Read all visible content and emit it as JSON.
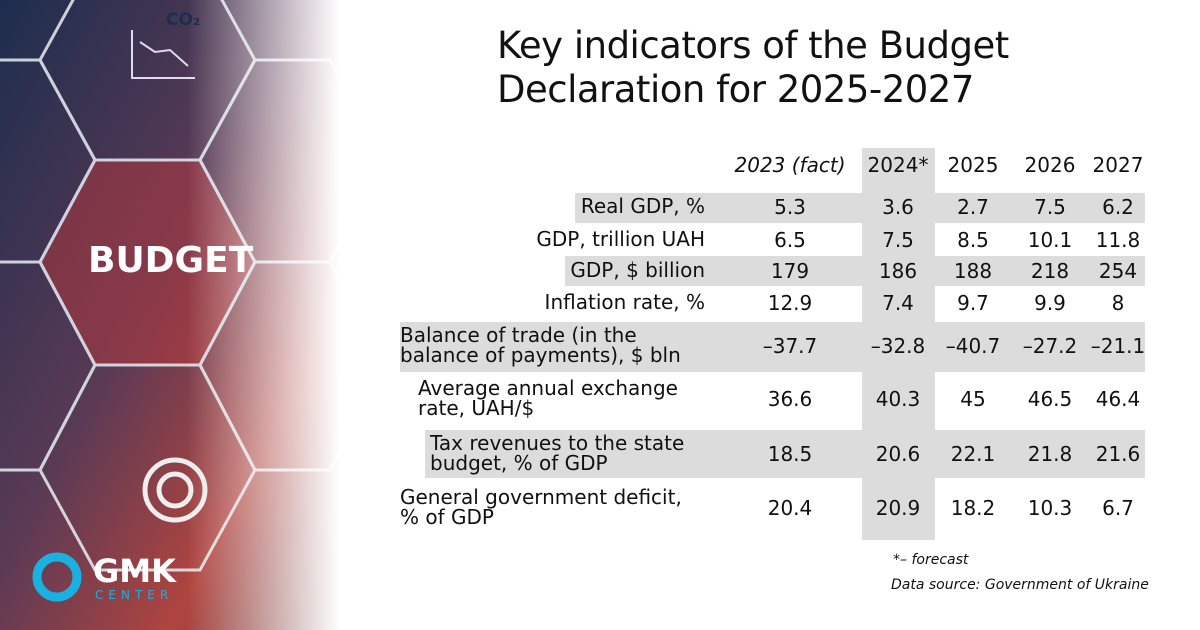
{
  "header": {
    "title_line1": "Key indicators of the Budget",
    "title_line2": "Declaration for 2025-2027"
  },
  "side": {
    "badge": "BUDGET",
    "icon_text": "CO₂",
    "logo": "GMK",
    "logo_sub": "CENTER"
  },
  "table": {
    "columns": [
      "2023 (fact)",
      "2024*",
      "2025",
      "2026",
      "2027"
    ],
    "rows": [
      [
        "Real GDP, %",
        "5.3",
        "3.6",
        "2.7",
        "7.5",
        "6.2"
      ],
      [
        "GDP, trillion UAH",
        "6.5",
        "7.5",
        "8.5",
        "10.1",
        "11.8"
      ],
      [
        "GDP, $ billion",
        "179",
        "186",
        "188",
        "218",
        "254"
      ],
      [
        "Inflation rate, %",
        "12.9",
        "7.4",
        "9.7",
        "9.9",
        "8"
      ],
      [
        "Balance of trade (in the balance of payments), $ bln",
        "–37.7",
        "–32.8",
        "–40.7",
        "–27.2",
        "–21.1"
      ],
      [
        "Average annual exchange rate, UAH/$",
        "36.6",
        "40.3",
        "45",
        "46.5",
        "46.4"
      ],
      [
        "Tax revenues to the state budget, % of GDP",
        "18.5",
        "20.6",
        "22.1",
        "21.8",
        "21.6"
      ],
      [
        "General government deficit, % of GDP",
        "20.4",
        "20.9",
        "18.2",
        "10.3",
        "6.7"
      ]
    ]
  },
  "footer": {
    "note": "*– forecast",
    "source": "Data source: Government of Ukraine"
  }
}
